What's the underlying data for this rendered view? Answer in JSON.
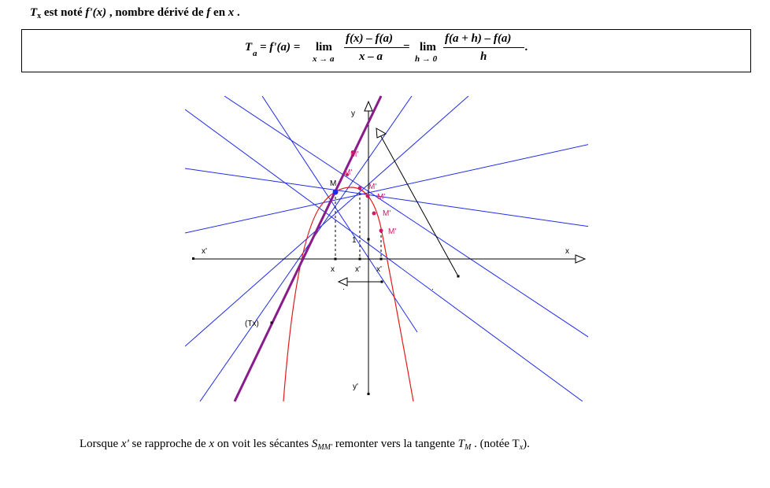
{
  "header": {
    "symbol": "T",
    "symbol_sub": "x",
    "text1": " est noté ",
    "fprime": "f'(x)",
    "text2": " , nombre dérivé de ",
    "f": "f",
    "text3": " en ",
    "x": "x",
    "text4": " ."
  },
  "formula": {
    "lhs_T": "T",
    "lhs_sub": "a",
    "eq1": "= f'(a) =",
    "lim1": "lim",
    "lim1_under": "x → a",
    "num1": "f(x) – f(a)",
    "den1": "x – a",
    "eq2": "=",
    "lim2": "lim",
    "lim2_under": "h → 0",
    "num2": "f(a + h) – f(a)",
    "den2": "h",
    "end": "."
  },
  "diagram": {
    "labels": {
      "y": "y",
      "y_prime": "y'",
      "x_prime_left": "x'",
      "x_right": "x",
      "M": "M",
      "one": "1",
      "x_tick": "x",
      "xp_tick1": "x'",
      "xp_tick2": "x'",
      "Tx": "(Tx)",
      "M_primes": [
        "M'",
        "M'",
        "M'",
        "M'",
        "M'",
        "M'"
      ]
    },
    "colors": {
      "secant": "#1f2be8",
      "tangent": "#8a1b8a",
      "curve": "#e11a1a",
      "axis": "#000000",
      "point_label": "#d0186a"
    }
  },
  "footer": {
    "t1": "Lorsque ",
    "xp": "x'",
    "t2": " se rapproche de ",
    "x": "x",
    "t3": " on voit les sécantes ",
    "S": "S",
    "S_sub": "MM'",
    "t4": " remonter vers la tangente ",
    "T": "T",
    "T_sub": "M",
    "t5": " . (notée T",
    "Tx_sub": "x",
    "t6": ")."
  }
}
